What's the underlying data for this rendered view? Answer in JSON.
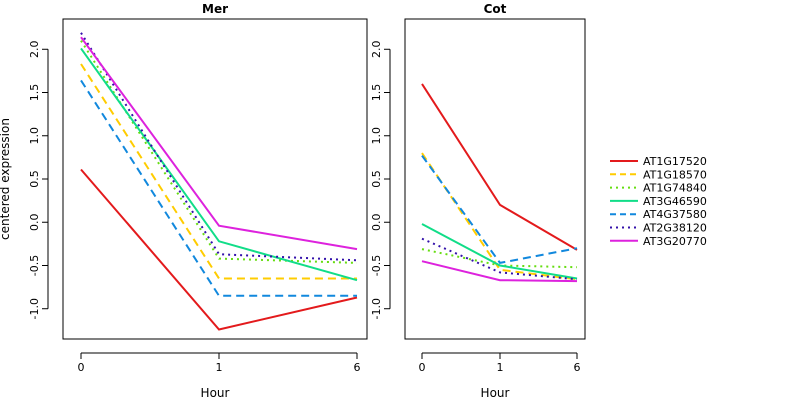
{
  "chart_data": [
    {
      "type": "line",
      "title": "Mer",
      "xlabel": "Hour",
      "ylabel": "centered expression",
      "x": [
        "0",
        "1",
        "6"
      ],
      "ylim": [
        -1.35,
        2.35
      ],
      "yticks": [
        "-1.0",
        "-0.5",
        "0.0",
        "0.5",
        "1.0",
        "1.5",
        "2.0"
      ],
      "series": [
        {
          "name": "AT1G17520",
          "color": "#e31a1c",
          "dash": "solid",
          "values": [
            0.61,
            -1.24,
            -0.87
          ]
        },
        {
          "name": "AT1G18570",
          "color": "#ffcc00",
          "dash": "dashed",
          "values": [
            1.83,
            -0.65,
            -0.65
          ]
        },
        {
          "name": "AT1G74840",
          "color": "#66dd11",
          "dash": "dotted",
          "values": [
            2.1,
            -0.42,
            -0.47
          ]
        },
        {
          "name": "AT3G46590",
          "color": "#11dd88",
          "dash": "solid",
          "values": [
            2.01,
            -0.22,
            -0.67
          ]
        },
        {
          "name": "AT4G37580",
          "color": "#1188dd",
          "dash": "dashed",
          "values": [
            1.64,
            -0.85,
            -0.85
          ]
        },
        {
          "name": "AT2G38120",
          "color": "#3311aa",
          "dash": "dotted",
          "values": [
            2.19,
            -0.37,
            -0.44
          ]
        },
        {
          "name": "AT3G20770",
          "color": "#dd22dd",
          "dash": "solid",
          "values": [
            2.14,
            -0.04,
            -0.31
          ]
        }
      ]
    },
    {
      "type": "line",
      "title": "Cot",
      "xlabel": "Hour",
      "ylabel": "",
      "x": [
        "0",
        "1",
        "6"
      ],
      "ylim": [
        -1.35,
        2.35
      ],
      "yticks": [
        "-1.0",
        "-0.5",
        "0.0",
        "0.5",
        "1.0",
        "1.5",
        "2.0"
      ],
      "series": [
        {
          "name": "AT1G17520",
          "color": "#e31a1c",
          "dash": "solid",
          "values": [
            1.6,
            0.2,
            -0.32
          ]
        },
        {
          "name": "AT1G18570",
          "color": "#ffcc00",
          "dash": "dashed",
          "values": [
            0.8,
            -0.55,
            -0.66
          ]
        },
        {
          "name": "AT1G74840",
          "color": "#66dd11",
          "dash": "dotted",
          "values": [
            -0.31,
            -0.5,
            -0.52
          ]
        },
        {
          "name": "AT3G46590",
          "color": "#11dd88",
          "dash": "solid",
          "values": [
            -0.02,
            -0.5,
            -0.65
          ]
        },
        {
          "name": "AT4G37580",
          "color": "#1188dd",
          "dash": "dashed",
          "values": [
            0.77,
            -0.47,
            -0.3
          ]
        },
        {
          "name": "AT2G38120",
          "color": "#3311aa",
          "dash": "dotted",
          "values": [
            -0.19,
            -0.58,
            -0.66
          ]
        },
        {
          "name": "AT3G20770",
          "color": "#dd22dd",
          "dash": "solid",
          "values": [
            -0.45,
            -0.67,
            -0.68
          ]
        }
      ]
    }
  ],
  "legend": {
    "placement": "right",
    "items": [
      {
        "name": "AT1G17520",
        "color": "#e31a1c",
        "dash": "solid"
      },
      {
        "name": "AT1G18570",
        "color": "#ffcc00",
        "dash": "dashed"
      },
      {
        "name": "AT1G74840",
        "color": "#66dd11",
        "dash": "dotted"
      },
      {
        "name": "AT3G46590",
        "color": "#11dd88",
        "dash": "solid"
      },
      {
        "name": "AT4G37580",
        "color": "#1188dd",
        "dash": "dashed"
      },
      {
        "name": "AT2G38120",
        "color": "#3311aa",
        "dash": "dotted"
      },
      {
        "name": "AT3G20770",
        "color": "#dd22dd",
        "dash": "solid"
      }
    ]
  }
}
